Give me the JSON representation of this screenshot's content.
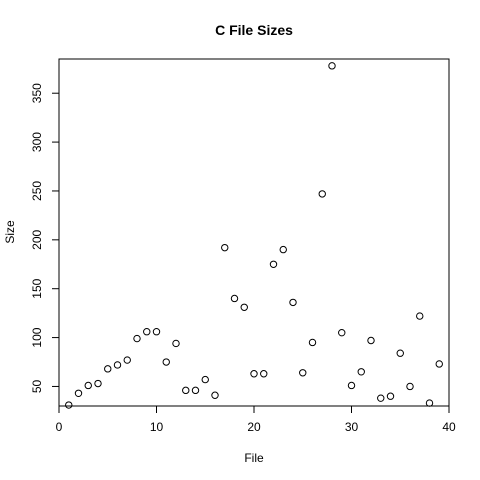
{
  "chart_data": {
    "type": "scatter",
    "title": "C File Sizes",
    "xlabel": "File",
    "ylabel": "Size",
    "xlim": [
      0,
      40
    ],
    "ylim": [
      30,
      385
    ],
    "x_ticks": [
      0,
      10,
      20,
      30,
      40
    ],
    "y_ticks": [
      50,
      100,
      150,
      200,
      250,
      300,
      350
    ],
    "grid": false,
    "legend": "none",
    "marker": "open-circle",
    "x": [
      1,
      2,
      3,
      4,
      5,
      6,
      7,
      8,
      9,
      10,
      11,
      12,
      13,
      14,
      15,
      16,
      17,
      18,
      19,
      20,
      21,
      22,
      23,
      24,
      25,
      26,
      27,
      28,
      29,
      30,
      31,
      32,
      33,
      34,
      35,
      36,
      37,
      38,
      39
    ],
    "y": [
      31,
      43,
      51,
      53,
      68,
      72,
      77,
      99,
      106,
      106,
      75,
      94,
      46,
      46,
      57,
      41,
      192,
      140,
      131,
      63,
      63,
      175,
      190,
      136,
      64,
      95,
      247,
      378,
      105,
      51,
      65,
      97,
      38,
      40,
      84,
      50,
      122,
      33,
      73
    ]
  }
}
